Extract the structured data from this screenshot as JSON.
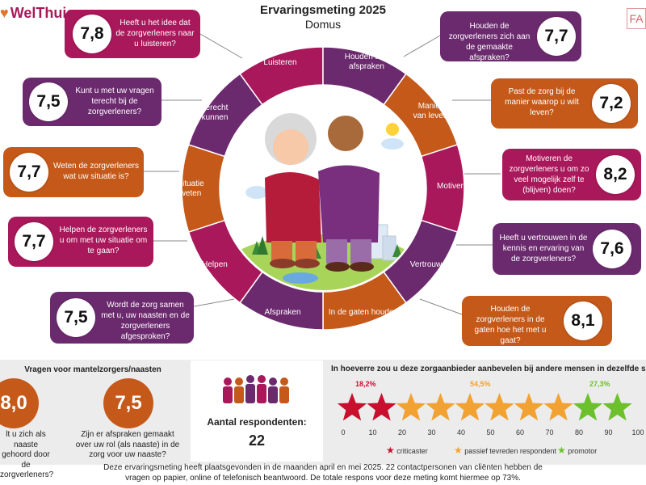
{
  "header": {
    "logo_text": "WelThuis",
    "title": "Ervaringsmeting 2025",
    "subtitle": "Domus",
    "corner_logo": "FA"
  },
  "colors": {
    "crimson": "#a8185a",
    "purple": "#6b2a6e",
    "orange": "#c4591a"
  },
  "ring_segments": [
    {
      "label": "Luisteren",
      "color": "#a8185a"
    },
    {
      "label": "Houden aan afspraken",
      "color": "#6b2a6e"
    },
    {
      "label": "Manier van leven",
      "color": "#c4591a"
    },
    {
      "label": "Motiveren",
      "color": "#a8185a"
    },
    {
      "label": "Vertrouwen",
      "color": "#6b2a6e"
    },
    {
      "label": "In de gaten houden",
      "color": "#c4591a"
    },
    {
      "label": "Afspraken",
      "color": "#6b2a6e"
    },
    {
      "label": "Helpen",
      "color": "#a8185a"
    },
    {
      "label": "Situatie weten",
      "color": "#c4591a"
    },
    {
      "label": "Terecht kunnen",
      "color": "#6b2a6e"
    }
  ],
  "ring_labels": {
    "luisteren": "Luisteren",
    "afspraken_1": "Houden aan",
    "afspraken_2": "afspraken",
    "manier_1": "Manier",
    "manier_2": "van leven",
    "motiveren": "Motiveren",
    "vertrouwen": "Vertrouwen",
    "gaten": "In de gaten houden",
    "afspraken": "Afspraken",
    "helpen": "Helpen",
    "situatie_1": "Situatie",
    "situatie_2": "weten",
    "terecht_1": "Terecht",
    "terecht_2": "kunnen"
  },
  "cards": {
    "luisteren": {
      "score": "7,8",
      "question": "Heeft u het idee dat de zorgverleners naar u luisteren?"
    },
    "terecht": {
      "score": "7,5",
      "question": "Kunt u met uw vragen terecht bij de zorgverleners?"
    },
    "situatie": {
      "score": "7,7",
      "question": "Weten de zorgverleners wat uw situatie is?"
    },
    "helpen": {
      "score": "7,7",
      "question": "Helpen de zorgverleners u om met uw situatie om te gaan?"
    },
    "afspraken": {
      "score": "7,5",
      "question": "Wordt de zorg samen met u, uw naasten en de zorgverleners afgesproken?"
    },
    "houden": {
      "score": "7,7",
      "question": "Houden de zorgverleners zich aan de gemaakte afspraken?"
    },
    "manier": {
      "score": "7,2",
      "question": "Past de zorg bij de manier waarop u wilt leven?"
    },
    "motiveren": {
      "score": "8,2",
      "question": "Motiveren de zorgverleners u om zo veel mogelijk zelf te (blijven) doen?"
    },
    "vertrouwen": {
      "score": "7,6",
      "question": "Heeft u vertrouwen in de kennis en ervaring van de zorgverleners?"
    },
    "gaten": {
      "score": "8,1",
      "question": "Houden de zorgverleners in de gaten hoe het met u gaat?"
    }
  },
  "mantelzorg": {
    "title": "Vragen voor mantelzorgers/naasten",
    "q1": {
      "score": "8,0",
      "question": "lt u zich als naaste gehoord door de zorgverleners?"
    },
    "q2": {
      "score": "7,5",
      "question": "Zijn er afspraken gemaakt over uw rol (als naaste) in de zorg voor uw naaste?"
    }
  },
  "respondents": {
    "label": "Aantal respondenten:",
    "count": "22"
  },
  "recommend": {
    "title": "In hoeverre zou u deze zorgaanbieder aanbevelen bij andere mensen in dezelfde situati",
    "criticaster_pct": "18,2%",
    "passief_pct": "54,5%",
    "promotor_pct": "27,3%",
    "criticaster_share": 18.2,
    "passief_share": 54.5,
    "promotor_share": 27.3,
    "axis": [
      "0",
      "10",
      "20",
      "30",
      "40",
      "50",
      "60",
      "70",
      "80",
      "90",
      "100"
    ],
    "legend": {
      "criticaster": "criticaster",
      "passief": "passief tevreden respondent",
      "promotor": "promotor"
    },
    "star_colors": {
      "criticaster": "#c8102e",
      "passief": "#f2a232",
      "promotor": "#6cc02c"
    }
  },
  "footer": {
    "line1": "Deze ervaringsmeting heeft plaatsgevonden in de maanden april en mei 2025. 22 contactpersonen van cliënten hebben de",
    "line2": "vragen op papier, online of telefonisch beantwoord. De totale respons voor deze meting komt hiermee op 73%."
  }
}
